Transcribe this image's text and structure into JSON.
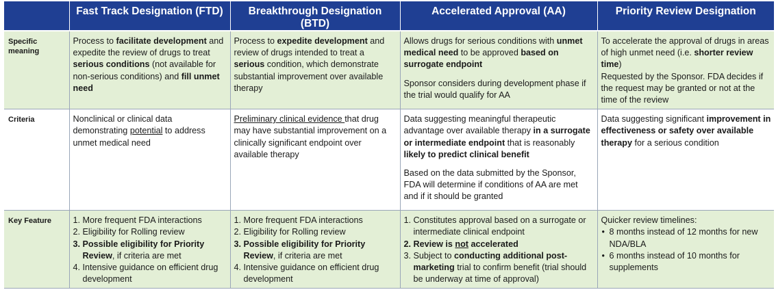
{
  "headers": {
    "corner": "",
    "col1": "Fast Track Designation (FTD)",
    "col2": "Breakthrough Designation (BTD)",
    "col3": "Accelerated Approval (AA)",
    "col4": "Priority Review Designation"
  },
  "row_labels": {
    "meaning_1": "Specific",
    "meaning_2": "meaning",
    "criteria": "Criteria",
    "key_feature": "Key Feature"
  },
  "meaning": {
    "ftd": {
      "t1": "Process to ",
      "b1": "facilitate development",
      "t2": " and expedite the review of drugs to treat ",
      "b2": "serious conditions",
      "t3": " (not available for non-serious conditions) and ",
      "b3": "fill unmet need"
    },
    "btd": {
      "t1": "Process to ",
      "b1": "expedite development",
      "t2": " and review of drugs intended to treat a ",
      "b2": "serious",
      "t3": " condition, which demonstrate substantial improvement over available therapy"
    },
    "aa": {
      "t1": "Allows drugs for serious conditions with ",
      "b1": "unmet medical need",
      "t2": " to be approved ",
      "b2": "based on surrogate endpoint",
      "p2": "Sponsor considers during development phase if the trial would qualify for AA"
    },
    "prd": {
      "t1": "To accelerate the approval of drugs in areas of high unmet need (i.e. ",
      "b1": "shorter review time",
      "t2": ")",
      "p2": "Requested by the Sponsor. FDA decides if the request may be granted or not at the time of the review"
    }
  },
  "criteria": {
    "ftd": {
      "t1": "Nonclinical or clinical data demonstrating ",
      "u1": "potential",
      "t2": " to address unmet medical need"
    },
    "btd": {
      "u1": "Preliminary clinical evidence ",
      "t1": "that drug may have substantial improvement on a clinically significant endpoint over available therapy"
    },
    "aa": {
      "t1": "Data suggesting meaningful therapeutic advantage over available therapy ",
      "b1": "in a surrogate or intermediate endpoint",
      "t2": " that is reasonably ",
      "b2": "likely to predict clinical benefit",
      "p2": "Based on the data submitted by the Sponsor, FDA will determine if conditions of AA are met and if it should be granted"
    },
    "prd": {
      "t1": "Data suggesting significant ",
      "b1": "improvement in effectiveness or safety over available therapy",
      "t2": " for a serious condition"
    }
  },
  "key_feature": {
    "ftd": {
      "i1": "More frequent FDA interactions",
      "i2": "Eligibility for Rolling review",
      "i3b": "Possible eligibility for Priority Review",
      "i3t": ", if criteria are met",
      "i4": "Intensive guidance on efficient drug development"
    },
    "btd": {
      "i1": "More frequent FDA interactions",
      "i2": "Eligibility for Rolling review",
      "i3b": "Possible eligibility for Priority Review",
      "i3t": ", if criteria are met",
      "i4": "Intensive guidance on efficient drug development"
    },
    "aa": {
      "i1": "Constitutes approval based on a surrogate or intermediate clinical endpoint",
      "i2a": "Review is ",
      "i2u": "not",
      "i2b": " accelerated",
      "i3a": "Subject to ",
      "i3b": "conducting additional post-marketing",
      "i3c": " trial to confirm benefit (trial should be underway at time of approval)"
    },
    "prd": {
      "intro": "Quicker review timelines:",
      "b1": "8 months instead of 12 months for new NDA/BLA",
      "b2": "6 months instead of 10 months for supplements"
    }
  },
  "numbers": {
    "n1": "1.",
    "n2": "2.",
    "n3": "3.",
    "n4": "4."
  }
}
